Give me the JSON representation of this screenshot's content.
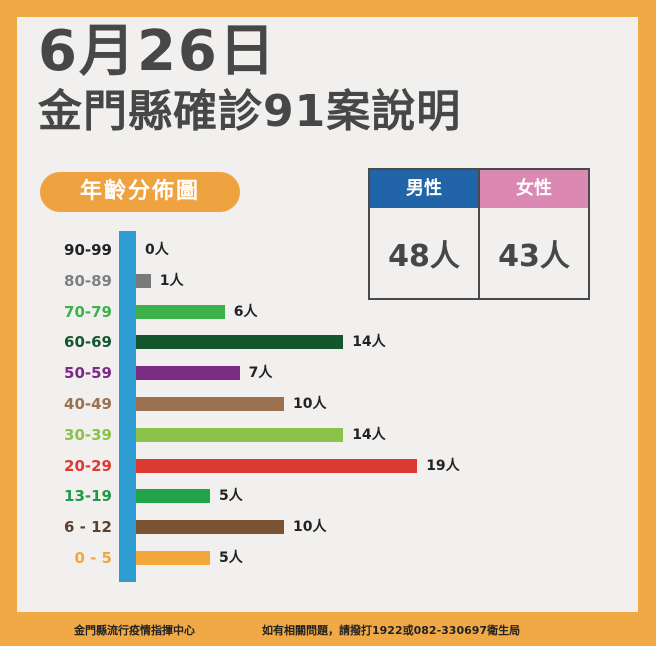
{
  "header": {
    "date": "6月26日",
    "subtitle": "金門縣確診91案說明"
  },
  "section_label": "年齡分佈圖",
  "gender": {
    "male": {
      "label": "男性",
      "value": "48人",
      "color": "#2164A8"
    },
    "female": {
      "label": "女性",
      "value": "43人",
      "color": "#DB88B2"
    }
  },
  "footer": {
    "org": "金門縣流行疫情指揮中心",
    "contact": "如有相關問題，請撥打1922或082-330697衛生局"
  },
  "colors": {
    "frame": "#F0A945",
    "panel": "#F1F0EE",
    "axis": "#2E9BD1",
    "text": "#474747"
  },
  "chart_data": {
    "type": "bar",
    "orientation": "horizontal",
    "title": "年齡分佈圖",
    "unit": "人",
    "categories": [
      "90-99",
      "80-89",
      "70-79",
      "60-69",
      "50-59",
      "40-49",
      "30-39",
      "20-29",
      "13-19",
      "6-12",
      "0-5"
    ],
    "values": [
      0,
      1,
      6,
      14,
      7,
      10,
      14,
      19,
      5,
      10,
      5
    ],
    "labels": [
      "0人",
      "1人",
      "6人",
      "14人",
      "7人",
      "10人",
      "14人",
      "19人",
      "5人",
      "10人",
      "5人"
    ],
    "category_display": [
      "90-99",
      "80-89",
      "70-79",
      "60-69",
      "50-59",
      "40-49",
      "30-39",
      "20-29",
      "13-19",
      "6 - 12",
      "0 - 5"
    ],
    "colors": [
      "#222222",
      "#7A7A7A",
      "#3DB24B",
      "#14572F",
      "#7B2B83",
      "#9B7150",
      "#8BC34A",
      "#DC3B33",
      "#22A24A",
      "#7A5234",
      "#F2A63C"
    ],
    "label_colors": [
      "#222222",
      "#808080",
      "#3DB24B",
      "#14572F",
      "#7B2B83",
      "#9B7150",
      "#8BC34A",
      "#DC3B33",
      "#1E9A48",
      "#5E4030",
      "#F2A63C"
    ],
    "total": 91,
    "grid": false,
    "legend": "none"
  }
}
